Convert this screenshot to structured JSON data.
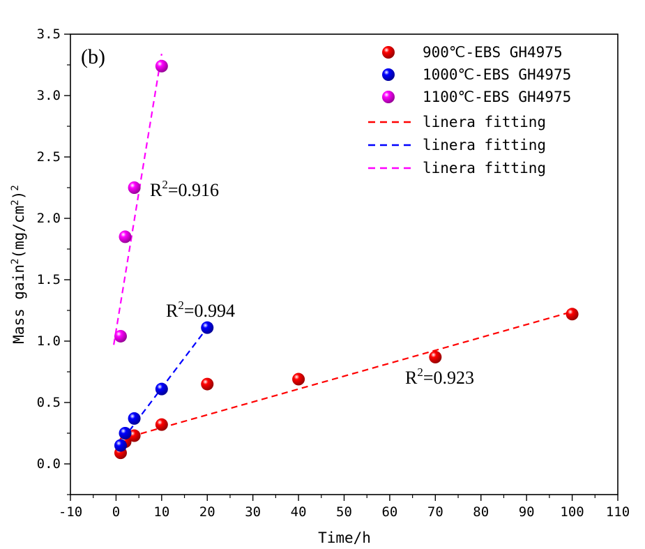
{
  "chart_data": {
    "type": "scatter",
    "panel_label": "(b)",
    "xlabel": "Time/h",
    "ylabel_main": "Mass gain",
    "ylabel_sup1": "2",
    "ylabel_unit": "(mg/cm",
    "ylabel_sup2": "2",
    "ylabel_close": ")",
    "ylabel_sup3": "2",
    "xlim": [
      -10,
      110
    ],
    "ylim": [
      -0.25,
      3.5
    ],
    "xticks": [
      -10,
      0,
      10,
      20,
      30,
      40,
      50,
      60,
      70,
      80,
      90,
      100,
      110
    ],
    "yticks": [
      0.0,
      0.5,
      1.0,
      1.5,
      2.0,
      2.5,
      3.0,
      3.5
    ],
    "xtick_labels": [
      "-10",
      "0",
      "10",
      "20",
      "30",
      "40",
      "50",
      "60",
      "70",
      "80",
      "90",
      "100",
      "110"
    ],
    "ytick_labels": [
      "0.0",
      "0.5",
      "1.0",
      "1.5",
      "2.0",
      "2.5",
      "3.0",
      "3.5"
    ],
    "grid": false,
    "legend_position": "top-right",
    "series": [
      {
        "name": "900℃-EBS GH4975",
        "color": "#ff0000",
        "x": [
          1,
          2,
          4,
          10,
          20,
          40,
          70,
          100
        ],
        "y": [
          0.09,
          0.18,
          0.23,
          0.32,
          0.65,
          0.69,
          0.87,
          1.22
        ]
      },
      {
        "name": "1000℃-EBS GH4975",
        "color": "#0000ff",
        "x": [
          1,
          2,
          4,
          10,
          20
        ],
        "y": [
          0.15,
          0.25,
          0.37,
          0.61,
          1.11
        ]
      },
      {
        "name": "1100℃-EBS GH4975",
        "color": "#ff00ff",
        "x": [
          1,
          2,
          4,
          10
        ],
        "y": [
          1.04,
          1.85,
          2.25,
          3.24
        ]
      }
    ],
    "fits": [
      {
        "name": "linera fitting",
        "color": "#ff0000",
        "x": [
          1,
          100
        ],
        "y": [
          0.2,
          1.24
        ]
      },
      {
        "name": "linera fitting",
        "color": "#0000ff",
        "x": [
          1.5,
          20
        ],
        "y": [
          0.2,
          1.11
        ]
      },
      {
        "name": "linera fitting",
        "color": "#ff00ff",
        "x": [
          -0.5,
          10
        ],
        "y": [
          0.97,
          3.34
        ]
      }
    ],
    "annotations": [
      {
        "prefix": "R",
        "sup": "2",
        "value": "=0.916",
        "x": 7.5,
        "y": 2.16
      },
      {
        "prefix": "R",
        "sup": "2",
        "value": "=0.994",
        "x": 11,
        "y": 1.19
      },
      {
        "prefix": "R",
        "sup": "2",
        "value": "=0.923",
        "x": 63,
        "y": 0.66
      }
    ]
  }
}
